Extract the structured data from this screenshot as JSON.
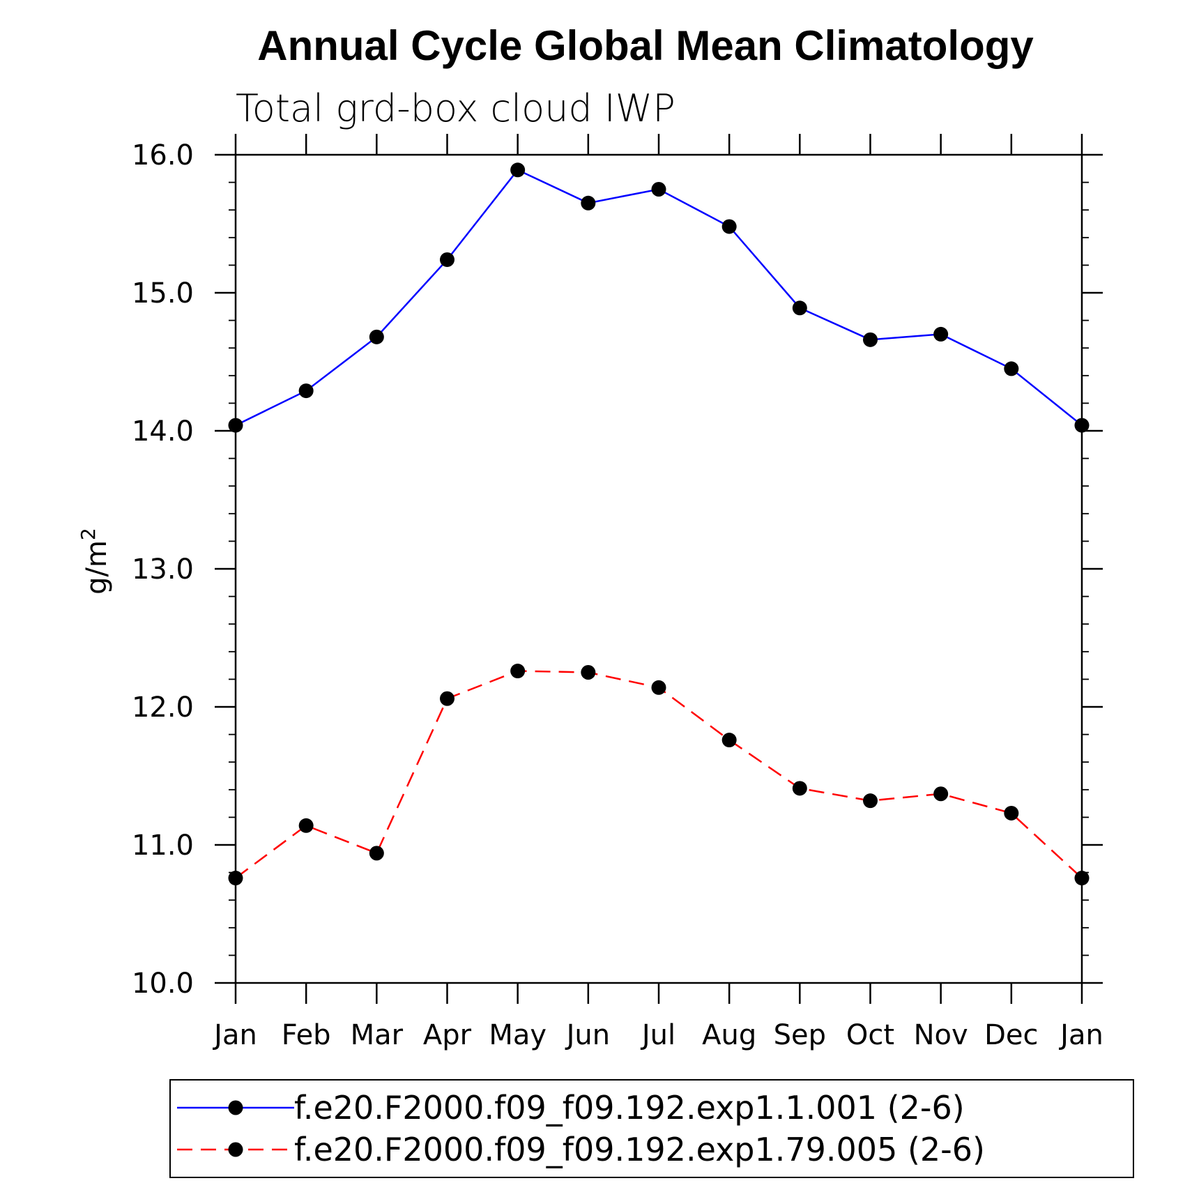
{
  "chart_data": {
    "type": "line",
    "title": "Annual Cycle Global Mean Climatology",
    "subtitle": "Total grd-box cloud IWP",
    "ylabel": "g/m",
    "ylabel_superscript": "2",
    "xlabel": "",
    "categories": [
      "Jan",
      "Feb",
      "Mar",
      "Apr",
      "May",
      "Jun",
      "Jul",
      "Aug",
      "Sep",
      "Oct",
      "Nov",
      "Dec",
      "Jan"
    ],
    "ylim": [
      10.0,
      16.0
    ],
    "y_ticks": [
      "10.0",
      "11.0",
      "12.0",
      "13.0",
      "14.0",
      "15.0",
      "16.0"
    ],
    "y_tick_values": [
      10,
      11,
      12,
      13,
      14,
      15,
      16
    ],
    "grid": false,
    "legend_position": "bottom",
    "series": [
      {
        "name": "f.e20.F2000.f09_f09.192.exp1.1.001 (2-6)",
        "color": "#0000ff",
        "style": "solid",
        "values": [
          14.04,
          14.29,
          14.68,
          15.24,
          15.89,
          15.65,
          15.75,
          15.48,
          14.89,
          14.66,
          14.7,
          14.45,
          14.04
        ]
      },
      {
        "name": "f.e20.F2000.f09_f09.192.exp1.79.005 (2-6)",
        "color": "#ff0000",
        "style": "dashed",
        "values": [
          10.76,
          11.14,
          10.94,
          12.06,
          12.26,
          12.25,
          12.14,
          11.76,
          11.41,
          11.32,
          11.37,
          11.23,
          10.76
        ]
      }
    ],
    "marker_color": "#000000"
  }
}
